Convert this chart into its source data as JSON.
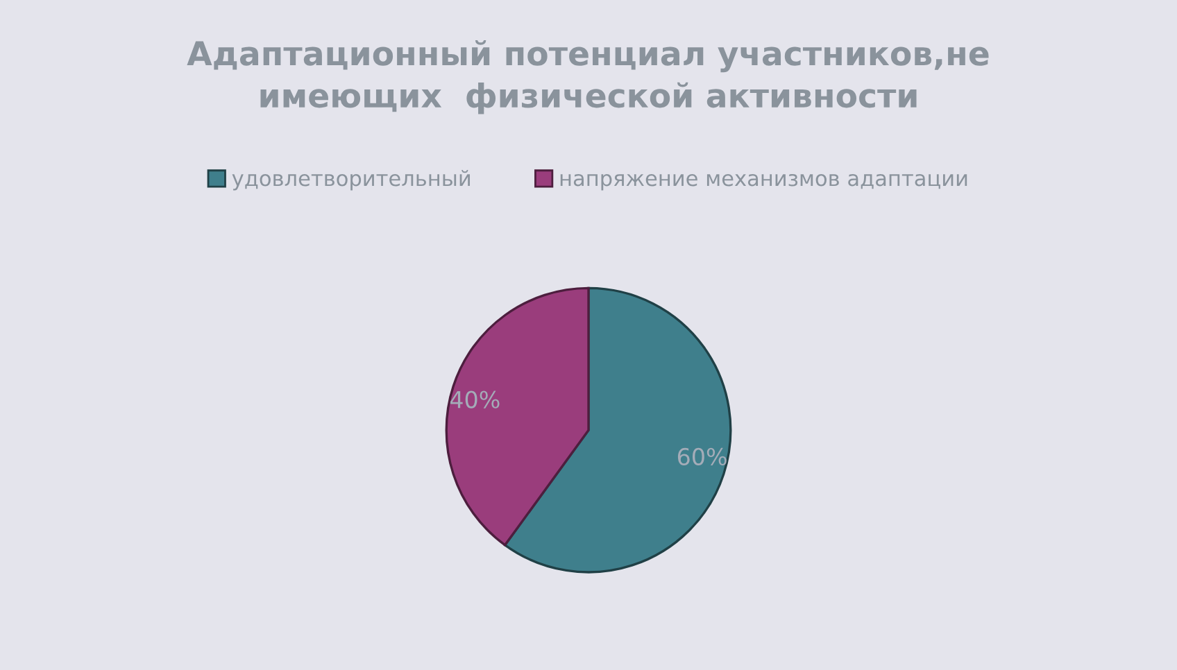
{
  "chart_data": {
    "type": "pie",
    "title": "Адаптационный потенциал участников,не\nимеющих  физической активности",
    "categories": [
      "удовлетворительный",
      "напряжение механизмов адаптации"
    ],
    "values": [
      60,
      40
    ],
    "colors": [
      "#3f7f8c",
      "#9a3d7c"
    ],
    "value_labels": [
      "60%",
      "40%"
    ],
    "legend": "top"
  }
}
